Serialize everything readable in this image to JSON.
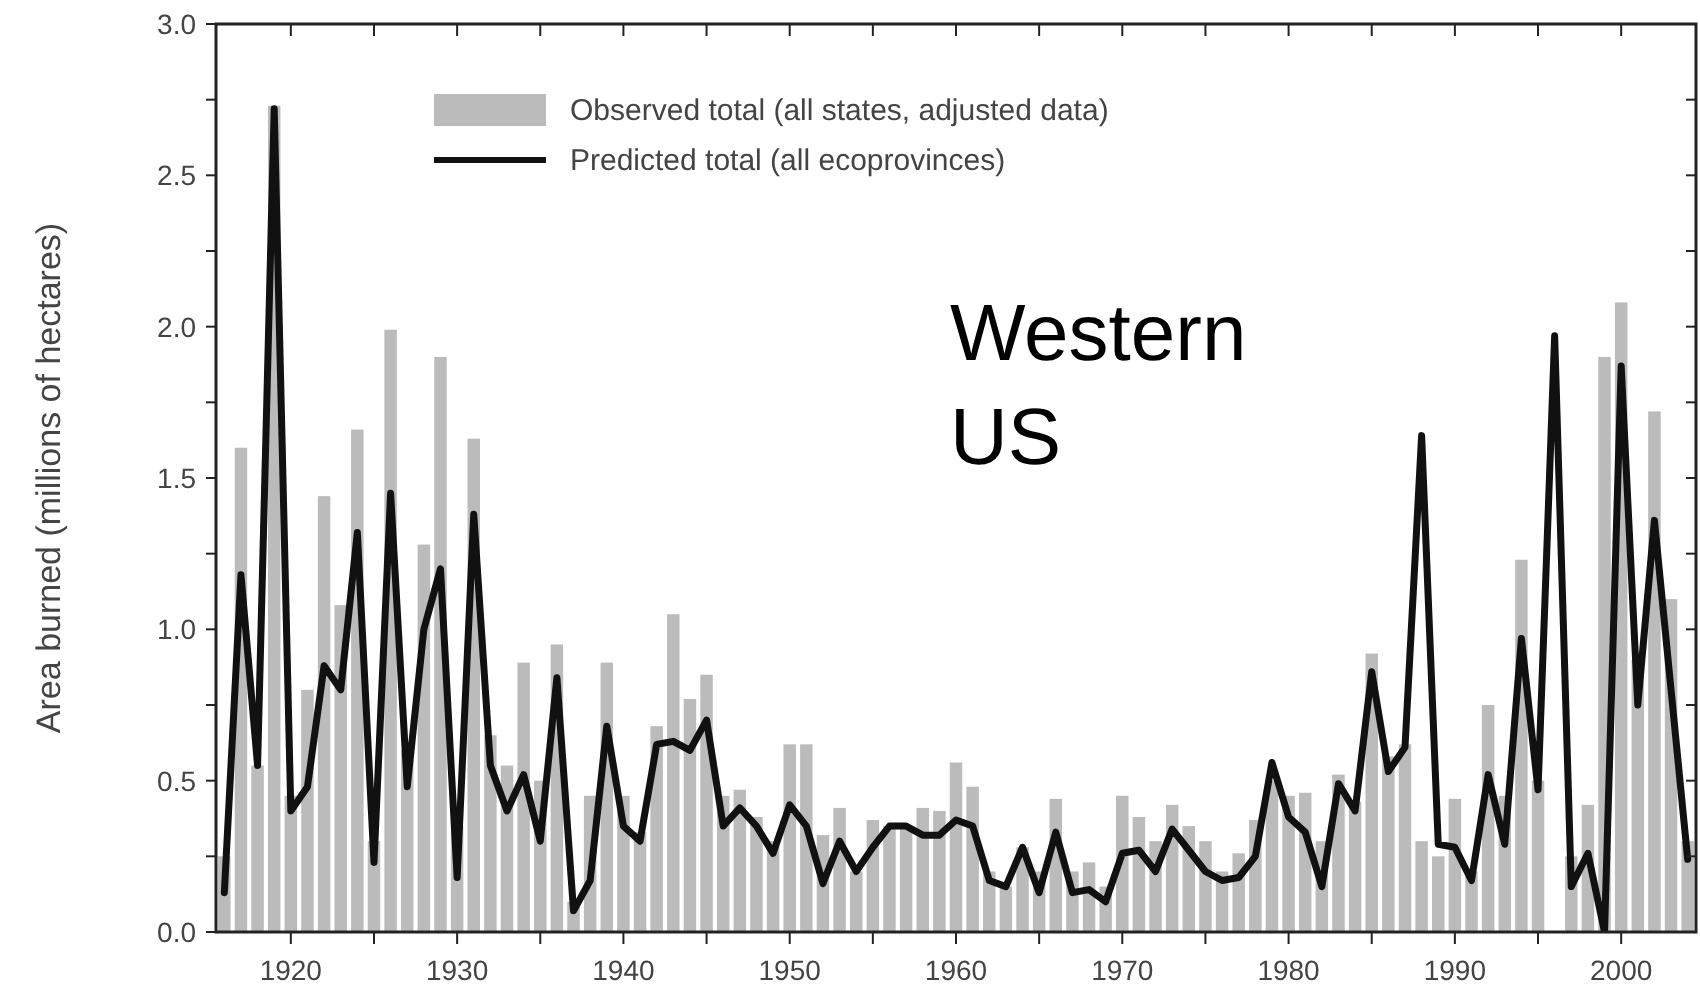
{
  "chart_data": {
    "type": "bar",
    "ylabel": "Area burned (millions of hectares)",
    "x": [
      1916,
      1917,
      1918,
      1919,
      1920,
      1921,
      1922,
      1923,
      1924,
      1925,
      1926,
      1927,
      1928,
      1929,
      1930,
      1931,
      1932,
      1933,
      1934,
      1935,
      1936,
      1937,
      1938,
      1939,
      1940,
      1941,
      1942,
      1943,
      1944,
      1945,
      1946,
      1947,
      1948,
      1949,
      1950,
      1951,
      1952,
      1953,
      1954,
      1955,
      1956,
      1957,
      1958,
      1959,
      1960,
      1961,
      1962,
      1963,
      1964,
      1965,
      1966,
      1967,
      1968,
      1969,
      1970,
      1971,
      1972,
      1973,
      1974,
      1975,
      1976,
      1977,
      1978,
      1979,
      1980,
      1981,
      1982,
      1983,
      1984,
      1985,
      1986,
      1987,
      1988,
      1989,
      1990,
      1991,
      1992,
      1993,
      1994,
      1995,
      1996,
      1997,
      1998,
      1999,
      2000,
      2001,
      2002,
      2003,
      2004
    ],
    "series": [
      {
        "name": "Observed total (all states, adjusted data)",
        "color": "#bbbbbb",
        "values": [
          0.25,
          1.6,
          0.55,
          2.73,
          0.45,
          0.8,
          1.44,
          1.08,
          1.66,
          0.3,
          1.99,
          0.6,
          1.28,
          1.9,
          0.35,
          1.63,
          0.65,
          0.55,
          0.89,
          0.5,
          0.95,
          0.1,
          0.45,
          0.89,
          0.45,
          0.33,
          0.68,
          1.05,
          0.77,
          0.85,
          0.45,
          0.47,
          0.38,
          0.3,
          0.62,
          0.62,
          0.32,
          0.41,
          0.2,
          0.37,
          0.35,
          0.34,
          0.41,
          0.4,
          0.56,
          0.48,
          0.2,
          0.15,
          0.28,
          0.2,
          0.44,
          0.2,
          0.23,
          0.15,
          0.45,
          0.38,
          0.3,
          0.42,
          0.35,
          0.3,
          0.2,
          0.26,
          0.37,
          0.5,
          0.45,
          0.46,
          0.3,
          0.52,
          0.43,
          0.92,
          0.58,
          0.62,
          0.3,
          0.25,
          0.44,
          0.2,
          0.75,
          0.45,
          1.23,
          0.5,
          null,
          0.25,
          0.42,
          1.9,
          2.08,
          0.9,
          1.72,
          1.1,
          0.3
        ]
      },
      {
        "name": "Predicted total (all ecoprovinces)",
        "type": "line",
        "color": "#111111",
        "values": [
          0.13,
          1.18,
          0.55,
          2.72,
          0.4,
          0.48,
          0.88,
          0.8,
          1.32,
          0.23,
          1.45,
          0.48,
          1.0,
          1.2,
          0.18,
          1.38,
          0.55,
          0.4,
          0.52,
          0.3,
          0.84,
          0.07,
          0.17,
          0.68,
          0.35,
          0.3,
          0.62,
          0.63,
          0.6,
          0.7,
          0.35,
          0.41,
          0.35,
          0.26,
          0.42,
          0.35,
          0.16,
          0.3,
          0.2,
          0.28,
          0.35,
          0.35,
          0.32,
          0.32,
          0.37,
          0.35,
          0.17,
          0.15,
          0.28,
          0.13,
          0.33,
          0.13,
          0.14,
          0.1,
          0.26,
          0.27,
          0.2,
          0.34,
          0.27,
          0.2,
          0.17,
          0.18,
          0.25,
          0.56,
          0.38,
          0.33,
          0.15,
          0.49,
          0.4,
          0.86,
          0.53,
          0.61,
          1.64,
          0.29,
          0.28,
          0.17,
          0.52,
          0.29,
          0.97,
          0.47,
          1.97,
          0.15,
          0.26,
          0.0,
          1.87,
          0.75,
          1.36,
          0.8,
          0.24
        ]
      }
    ],
    "xlim": [
      1915.5,
      2004.5
    ],
    "xticks": [
      1920,
      {
        "value": 1925,
        "label": null
      },
      1930,
      {
        "value": 1935,
        "label": null
      },
      1940,
      {
        "value": 1945,
        "label": null
      },
      1950,
      {
        "value": 1955,
        "label": null
      },
      1960,
      {
        "value": 1965,
        "label": null
      },
      1970,
      {
        "value": 1975,
        "label": null
      },
      1980,
      {
        "value": 1985,
        "label": null
      },
      1990,
      {
        "value": 1995,
        "label": null
      },
      2000
    ],
    "ylim": [
      0,
      3
    ],
    "yticks": [
      {
        "value": 0,
        "label": "0.0"
      },
      {
        "value": 0.25,
        "label": null
      },
      {
        "value": 0.5,
        "label": "0.5"
      },
      {
        "value": 0.75,
        "label": null
      },
      {
        "value": 1,
        "label": "1.0"
      },
      {
        "value": 1.25,
        "label": null
      },
      {
        "value": 1.5,
        "label": "1.5"
      },
      {
        "value": 1.75,
        "label": null
      },
      {
        "value": 2,
        "label": "2.0"
      },
      {
        "value": 2.25,
        "label": null
      },
      {
        "value": 2.5,
        "label": "2.5"
      },
      {
        "value": 2.75,
        "label": null
      },
      {
        "value": 3,
        "label": "3.0"
      }
    ],
    "legend": "top",
    "annotations": [
      "Western US"
    ]
  }
}
